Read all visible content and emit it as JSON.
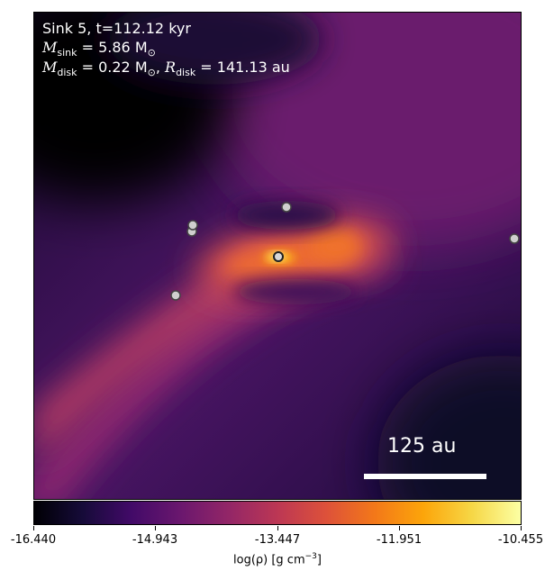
{
  "panel": {
    "line1": "Sink 5, t=112.12 kyr",
    "m_sink_label": "M",
    "m_sink_sub": "sink",
    "m_sink_value": " = 5.86 M",
    "m_sink_sun": "⊙",
    "m_disk_label": "M",
    "m_disk_sub": "disk",
    "m_disk_value": " = 0.22 M",
    "m_disk_sun": "⊙",
    "r_disk_sep": ", ",
    "r_disk_label": "R",
    "r_disk_sub": "disk",
    "r_disk_value": " = 141.13 au",
    "scale_bar_label": "125 au"
  },
  "colorbar": {
    "colormap": "inferno",
    "ticks": [
      "-16.440",
      "-14.943",
      "-13.447",
      "-11.951",
      "-10.455"
    ],
    "label_main": "log(ρ) [g cm",
    "label_exp": "−3",
    "label_end": "]"
  },
  "colors": {
    "background_dark": "#0a0614",
    "purple": "#6a1a6e",
    "magenta": "#a7336a",
    "orange": "#f2772c",
    "yellow": "#fcffa4"
  },
  "sinks": [
    {
      "id": "sink-a",
      "icon": "sink-particle-icon"
    },
    {
      "id": "sink-b",
      "icon": "sink-particle-icon"
    },
    {
      "id": "sink-c",
      "icon": "sink-particle-icon"
    },
    {
      "id": "sink-d",
      "icon": "sink-particle-icon"
    },
    {
      "id": "sink-e",
      "icon": "sink-particle-icon"
    },
    {
      "id": "sink-central",
      "icon": "sink-particle-icon"
    },
    {
      "id": "sink-edge",
      "icon": "sink-particle-icon"
    }
  ]
}
